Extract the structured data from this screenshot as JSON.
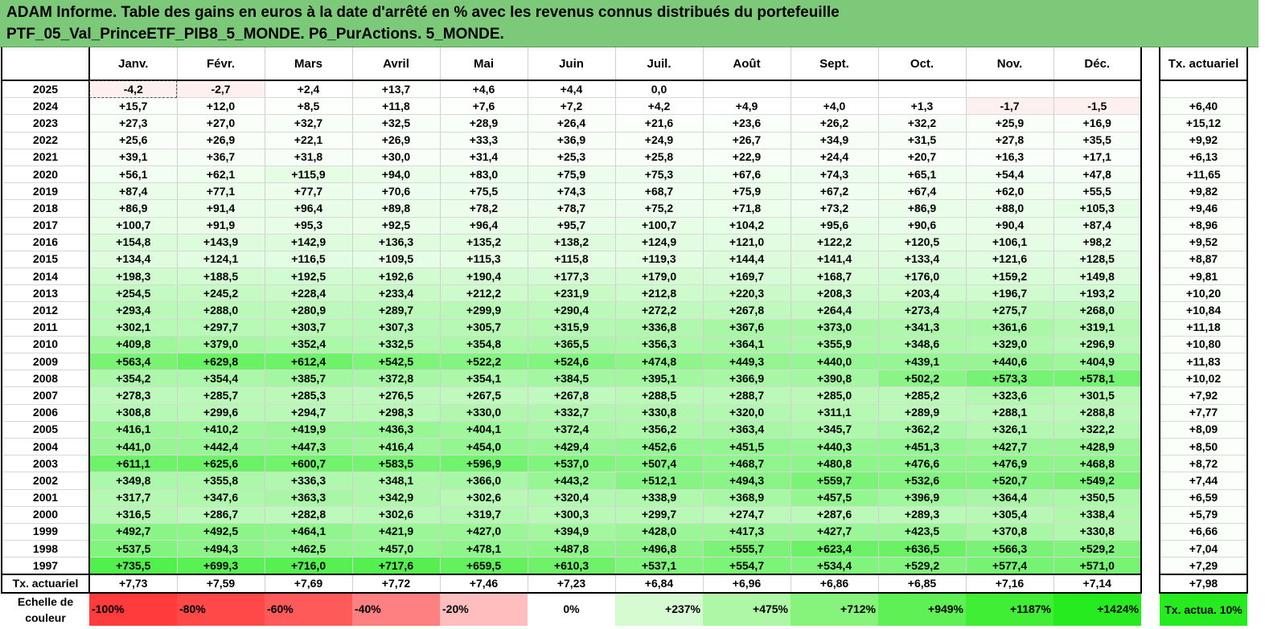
{
  "title": {
    "line1": "ADAM Informe. Table des gains en euros à la date d'arrêté en % avec les revenus connus distribués du portefeuille",
    "line2": "PTF_05_Val_PrinceETF_PIB8_5_MONDE. P6_PurActions. 5_MONDE."
  },
  "months": [
    "Janv.",
    "Févr.",
    "Mars",
    "Avril",
    "Mai",
    "Juin",
    "Juil.",
    "Août",
    "Sept.",
    "Oct.",
    "Nov.",
    "Déc."
  ],
  "tx_header": "Tx. actuariel",
  "rows": [
    {
      "year": "2025",
      "v": [
        "-4,2",
        "-2,7",
        "+2,4",
        "+13,7",
        "+4,6",
        "+4,4",
        "0,0",
        "",
        "",
        "",
        "",
        ""
      ],
      "tx": ""
    },
    {
      "year": "2024",
      "v": [
        "+15,7",
        "+12,0",
        "+8,5",
        "+11,8",
        "+7,6",
        "+7,2",
        "+4,2",
        "+4,9",
        "+4,0",
        "+1,3",
        "-1,7",
        "-1,5"
      ],
      "tx": "+6,40"
    },
    {
      "year": "2023",
      "v": [
        "+27,3",
        "+27,0",
        "+32,7",
        "+32,5",
        "+28,9",
        "+26,4",
        "+21,6",
        "+23,6",
        "+26,2",
        "+32,2",
        "+25,9",
        "+16,9"
      ],
      "tx": "+15,12"
    },
    {
      "year": "2022",
      "v": [
        "+25,6",
        "+26,9",
        "+22,1",
        "+26,9",
        "+33,3",
        "+36,9",
        "+24,9",
        "+26,7",
        "+34,9",
        "+31,5",
        "+27,8",
        "+35,5"
      ],
      "tx": "+9,92"
    },
    {
      "year": "2021",
      "v": [
        "+39,1",
        "+36,7",
        "+31,8",
        "+30,0",
        "+31,4",
        "+25,3",
        "+25,8",
        "+22,9",
        "+24,4",
        "+20,7",
        "+16,3",
        "+17,1"
      ],
      "tx": "+6,13"
    },
    {
      "year": "2020",
      "v": [
        "+56,1",
        "+62,1",
        "+115,9",
        "+94,0",
        "+83,0",
        "+75,9",
        "+75,3",
        "+67,6",
        "+74,3",
        "+65,1",
        "+54,4",
        "+47,8"
      ],
      "tx": "+11,65"
    },
    {
      "year": "2019",
      "v": [
        "+87,4",
        "+77,1",
        "+77,7",
        "+70,6",
        "+75,5",
        "+74,3",
        "+68,7",
        "+75,9",
        "+67,2",
        "+67,4",
        "+62,0",
        "+55,5"
      ],
      "tx": "+9,82"
    },
    {
      "year": "2018",
      "v": [
        "+86,9",
        "+91,4",
        "+96,4",
        "+89,8",
        "+78,2",
        "+78,7",
        "+75,2",
        "+71,8",
        "+73,2",
        "+86,9",
        "+88,0",
        "+105,3"
      ],
      "tx": "+9,46"
    },
    {
      "year": "2017",
      "v": [
        "+100,7",
        "+91,9",
        "+95,3",
        "+92,5",
        "+96,4",
        "+95,7",
        "+100,7",
        "+104,2",
        "+95,6",
        "+90,6",
        "+90,4",
        "+87,4"
      ],
      "tx": "+8,96"
    },
    {
      "year": "2016",
      "v": [
        "+154,8",
        "+143,9",
        "+142,9",
        "+136,3",
        "+135,2",
        "+138,2",
        "+124,9",
        "+121,0",
        "+122,2",
        "+120,5",
        "+106,1",
        "+98,2"
      ],
      "tx": "+9,52"
    },
    {
      "year": "2015",
      "v": [
        "+134,4",
        "+124,1",
        "+116,5",
        "+109,5",
        "+115,3",
        "+115,8",
        "+119,3",
        "+144,4",
        "+141,4",
        "+133,4",
        "+121,6",
        "+128,5"
      ],
      "tx": "+8,87"
    },
    {
      "year": "2014",
      "v": [
        "+198,3",
        "+188,5",
        "+192,5",
        "+192,6",
        "+190,4",
        "+177,3",
        "+179,0",
        "+169,7",
        "+168,7",
        "+176,0",
        "+159,2",
        "+149,8"
      ],
      "tx": "+9,81"
    },
    {
      "year": "2013",
      "v": [
        "+254,5",
        "+245,2",
        "+228,4",
        "+233,4",
        "+212,2",
        "+231,9",
        "+212,8",
        "+220,3",
        "+208,3",
        "+203,4",
        "+196,7",
        "+193,2"
      ],
      "tx": "+10,20"
    },
    {
      "year": "2012",
      "v": [
        "+293,4",
        "+288,0",
        "+280,9",
        "+289,7",
        "+299,9",
        "+290,4",
        "+272,2",
        "+267,8",
        "+264,4",
        "+273,4",
        "+275,7",
        "+268,0"
      ],
      "tx": "+10,84"
    },
    {
      "year": "2011",
      "v": [
        "+302,1",
        "+297,7",
        "+303,7",
        "+307,3",
        "+305,7",
        "+315,9",
        "+336,8",
        "+367,6",
        "+373,0",
        "+341,3",
        "+361,6",
        "+319,1"
      ],
      "tx": "+11,18"
    },
    {
      "year": "2010",
      "v": [
        "+409,8",
        "+379,0",
        "+352,4",
        "+332,5",
        "+354,8",
        "+365,5",
        "+356,3",
        "+364,1",
        "+355,9",
        "+348,6",
        "+329,0",
        "+296,9"
      ],
      "tx": "+10,80"
    },
    {
      "year": "2009",
      "v": [
        "+563,4",
        "+629,8",
        "+612,4",
        "+542,5",
        "+522,2",
        "+524,6",
        "+474,8",
        "+449,3",
        "+440,0",
        "+439,1",
        "+440,6",
        "+404,9"
      ],
      "tx": "+11,83"
    },
    {
      "year": "2008",
      "v": [
        "+354,2",
        "+354,4",
        "+385,7",
        "+372,8",
        "+354,1",
        "+384,5",
        "+395,1",
        "+366,9",
        "+390,8",
        "+502,2",
        "+573,3",
        "+578,1"
      ],
      "tx": "+10,02"
    },
    {
      "year": "2007",
      "v": [
        "+278,3",
        "+285,7",
        "+285,3",
        "+276,5",
        "+267,5",
        "+267,8",
        "+288,5",
        "+288,7",
        "+285,0",
        "+285,2",
        "+323,6",
        "+301,5"
      ],
      "tx": "+7,92"
    },
    {
      "year": "2006",
      "v": [
        "+308,8",
        "+299,6",
        "+294,7",
        "+298,3",
        "+330,0",
        "+332,7",
        "+330,8",
        "+320,0",
        "+311,1",
        "+289,9",
        "+288,1",
        "+288,8"
      ],
      "tx": "+7,77"
    },
    {
      "year": "2005",
      "v": [
        "+416,1",
        "+410,2",
        "+419,9",
        "+436,3",
        "+404,1",
        "+372,4",
        "+356,2",
        "+363,4",
        "+345,7",
        "+362,2",
        "+326,1",
        "+322,2"
      ],
      "tx": "+8,09"
    },
    {
      "year": "2004",
      "v": [
        "+441,0",
        "+442,4",
        "+447,3",
        "+416,4",
        "+454,0",
        "+429,4",
        "+452,6",
        "+451,5",
        "+440,3",
        "+451,3",
        "+427,7",
        "+428,9"
      ],
      "tx": "+8,50"
    },
    {
      "year": "2003",
      "v": [
        "+611,1",
        "+625,6",
        "+600,7",
        "+583,5",
        "+596,9",
        "+537,0",
        "+507,4",
        "+468,7",
        "+480,8",
        "+476,6",
        "+476,9",
        "+468,8"
      ],
      "tx": "+8,72"
    },
    {
      "year": "2002",
      "v": [
        "+349,8",
        "+355,8",
        "+336,3",
        "+348,1",
        "+366,0",
        "+443,2",
        "+512,1",
        "+494,3",
        "+559,7",
        "+532,6",
        "+520,7",
        "+549,2"
      ],
      "tx": "+7,44"
    },
    {
      "year": "2001",
      "v": [
        "+317,7",
        "+347,6",
        "+363,3",
        "+342,9",
        "+302,6",
        "+320,4",
        "+338,9",
        "+368,9",
        "+457,5",
        "+396,9",
        "+364,4",
        "+350,5"
      ],
      "tx": "+6,59"
    },
    {
      "year": "2000",
      "v": [
        "+316,5",
        "+286,7",
        "+282,8",
        "+302,6",
        "+319,7",
        "+300,3",
        "+299,7",
        "+274,7",
        "+287,6",
        "+289,3",
        "+305,4",
        "+338,4"
      ],
      "tx": "+5,79"
    },
    {
      "year": "1999",
      "v": [
        "+492,7",
        "+492,5",
        "+464,1",
        "+421,9",
        "+427,0",
        "+394,9",
        "+428,0",
        "+417,3",
        "+427,7",
        "+423,5",
        "+370,8",
        "+330,8"
      ],
      "tx": "+6,66"
    },
    {
      "year": "1998",
      "v": [
        "+537,5",
        "+494,3",
        "+462,5",
        "+457,0",
        "+478,1",
        "+487,8",
        "+496,8",
        "+555,7",
        "+623,4",
        "+636,5",
        "+566,3",
        "+529,2"
      ],
      "tx": "+7,04"
    },
    {
      "year": "1997",
      "v": [
        "+735,5",
        "+699,3",
        "+716,0",
        "+717,6",
        "+659,5",
        "+610,3",
        "+537,1",
        "+554,7",
        "+534,4",
        "+529,2",
        "+577,4",
        "+571,0"
      ],
      "tx": "+7,29"
    }
  ],
  "totals": {
    "label": "Tx. actuariel",
    "v": [
      "+7,73",
      "+7,59",
      "+7,69",
      "+7,72",
      "+7,46",
      "+7,23",
      "+6,84",
      "+6,96",
      "+6,86",
      "+6,85",
      "+7,16",
      "+7,14"
    ],
    "tx": "+7,98"
  },
  "scale": {
    "label": "Echelle de couleur",
    "items": [
      {
        "text": "-100%",
        "color": "#ff3b3b",
        "align": "left"
      },
      {
        "text": "-80%",
        "color": "#ff4848",
        "align": "left"
      },
      {
        "text": "-60%",
        "color": "#ff5a5a",
        "align": "left"
      },
      {
        "text": "-40%",
        "color": "#ff8080",
        "align": "left"
      },
      {
        "text": "-20%",
        "color": "#ffbdbd",
        "align": "left"
      },
      {
        "text": "0%",
        "color": "#ffffff",
        "align": "center"
      },
      {
        "text": "+237%",
        "color": "#d6fbd3",
        "align": "right"
      },
      {
        "text": "+475%",
        "color": "#adf7a6",
        "align": "right"
      },
      {
        "text": "+712%",
        "color": "#85f37c",
        "align": "right"
      },
      {
        "text": "+949%",
        "color": "#5ef054",
        "align": "right"
      },
      {
        "text": "+1187%",
        "color": "#40ee36",
        "align": "right"
      },
      {
        "text": "+1424%",
        "color": "#26ec1f",
        "align": "right"
      }
    ],
    "tx": {
      "text": "Tx. actua. 10%",
      "color": "#26ec1f"
    }
  },
  "colors": {
    "title_bg": "#7dc97a",
    "negative_tint": "#fff0f0",
    "positive_max": "#26ec1f"
  }
}
